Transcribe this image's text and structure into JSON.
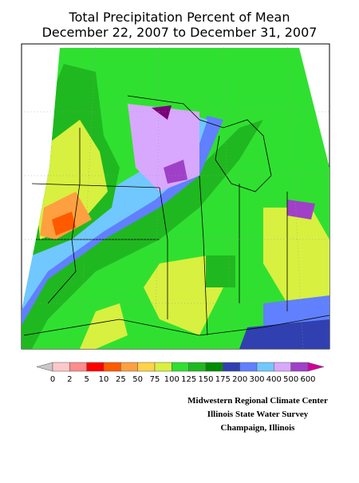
{
  "title": "Total Precipitation Percent of Mean",
  "subtitle": "December 22, 2007 to December 31, 2007",
  "legend": {
    "ticks": [
      0,
      2,
      5,
      10,
      25,
      50,
      75,
      100,
      125,
      150,
      175,
      200,
      300,
      400,
      500,
      600
    ],
    "colors": [
      "#ffc8c8",
      "#ff8c8c",
      "#ff0000",
      "#ff5a00",
      "#ffa040",
      "#ffd24a",
      "#d8f040",
      "#30e030",
      "#20b820",
      "#008c00",
      "#3040b0",
      "#6080ff",
      "#70c8ff",
      "#d8a8ff",
      "#a040c8",
      "#7a0078"
    ],
    "under_color": "#c8c8c8",
    "over_color": "#d0009a"
  },
  "credits": [
    "Midwestern Regional Climate Center",
    "Illinois State Water Survey",
    "Champaign, Illinois"
  ]
}
